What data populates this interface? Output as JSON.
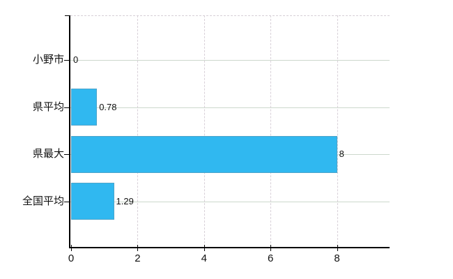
{
  "chart_data": {
    "type": "bar",
    "orientation": "horizontal",
    "title": "",
    "xlabel": "",
    "ylabel": "",
    "categories": [
      "小野市",
      "県平均",
      "県最大",
      "全国平均"
    ],
    "values": [
      0,
      0.78,
      8,
      1.29
    ],
    "value_labels": [
      "0",
      "0.78",
      "8",
      "1.29"
    ],
    "xticks": [
      0,
      2,
      4,
      6,
      8
    ],
    "xtick_labels": [
      "0",
      "2",
      "4",
      "6",
      "8"
    ],
    "xlim": [
      0,
      9.58
    ],
    "legend": null,
    "grid": {
      "horizontal": "solid",
      "vertical": "dashed",
      "top_border": "dashed"
    },
    "colors": {
      "bar": "#30b8f0",
      "axis": "#000000",
      "horizontal_grid": "#ccd8cc",
      "vertical_grid": "#d8d0d8",
      "text": "#111111",
      "background": "#ffffff"
    }
  }
}
